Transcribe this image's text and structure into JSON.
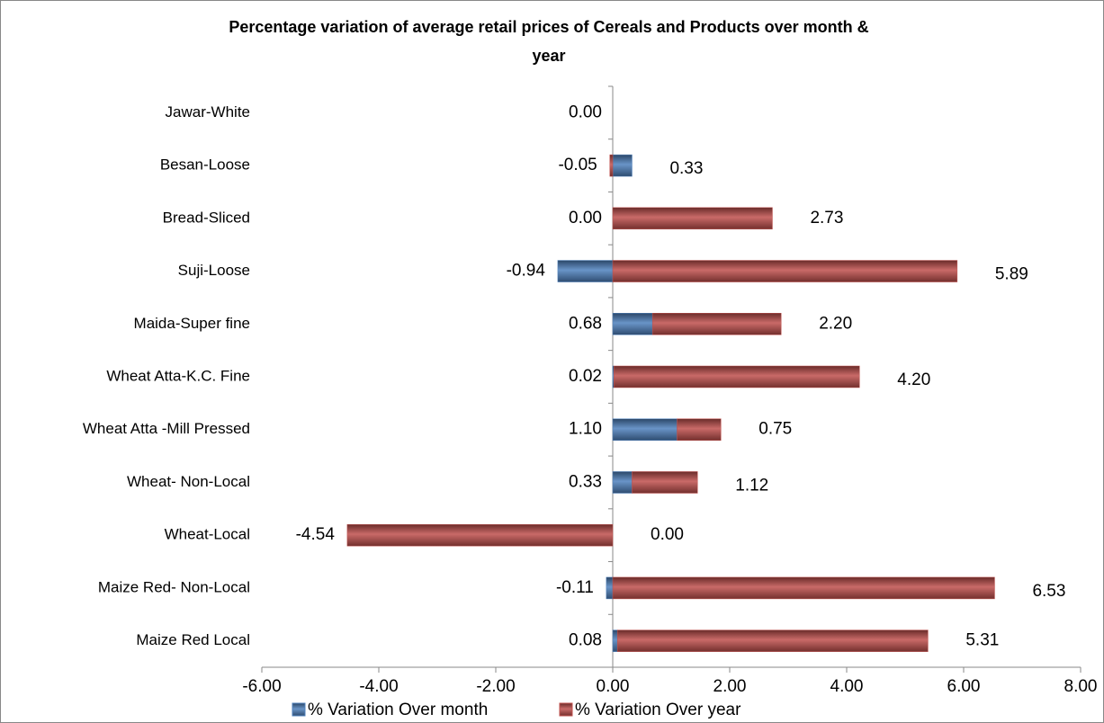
{
  "chart_data": {
    "type": "stacked-bar-horizontal",
    "title": "Percentage variation of average retail prices of Cereals and Products over month & year",
    "categories": [
      "Jawar-White",
      "Besan-Loose",
      "Bread-Sliced",
      "Suji-Loose",
      "Maida-Super fine",
      "Wheat Atta-K.C. Fine",
      "Wheat Atta -Mill Pressed",
      "Wheat- Non-Local",
      "Wheat-Local",
      "Maize Red- Non-Local",
      "Maize Red Local"
    ],
    "series": [
      {
        "name": "% Variation Over month",
        "color": "#4f81bd",
        "values": [
          0,
          0.33,
          0,
          -0.94,
          0.68,
          0.02,
          1.1,
          0.33,
          0,
          -0.11,
          0.08
        ],
        "value_labels": [
          "0.00",
          "0.33",
          "0.00",
          "-0.94",
          "0.68",
          "0.02",
          "1.10",
          "0.33",
          "0.00",
          "-0.11",
          "0.08"
        ]
      },
      {
        "name": "% Variation Over year",
        "color": "#c0504d",
        "values": [
          0,
          -0.05,
          2.73,
          5.89,
          2.2,
          4.2,
          0.75,
          1.12,
          -4.54,
          6.53,
          5.31
        ],
        "value_labels": [
          null,
          "-0.05",
          "2.73",
          "5.89",
          "2.20",
          "4.20",
          "0.75",
          "1.12",
          "-4.54",
          "6.53",
          "5.31"
        ]
      }
    ],
    "xlim": [
      -6,
      8
    ],
    "xticks": [
      {
        "value": -6,
        "label": "-6.00"
      },
      {
        "value": -4,
        "label": "-4.00"
      },
      {
        "value": -2,
        "label": "-2.00"
      },
      {
        "value": 0,
        "label": "0.00"
      },
      {
        "value": 2,
        "label": "2.00"
      },
      {
        "value": 4,
        "label": "4.00"
      },
      {
        "value": 6,
        "label": "6.00"
      },
      {
        "value": 8,
        "label": "8.00"
      }
    ],
    "legend": "bottom"
  }
}
